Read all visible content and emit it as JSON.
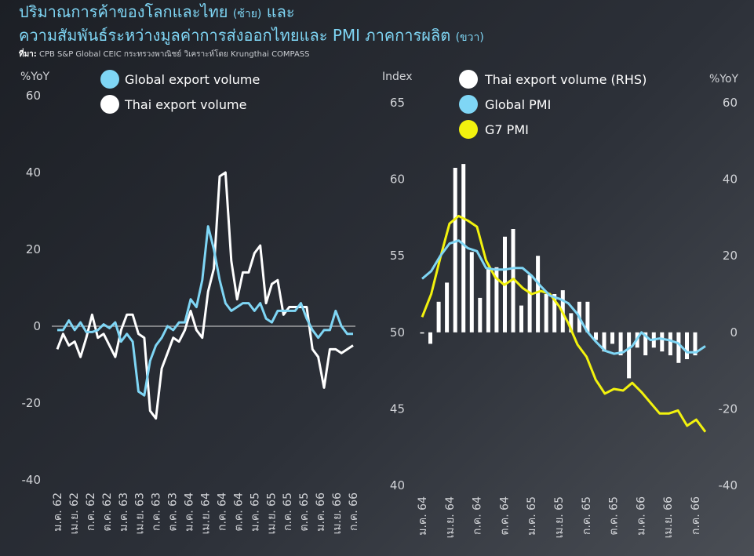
{
  "title": {
    "line1_main": "ปริมาณการค้าของโลกและไทย",
    "line1_paren": "(ซ้าย)",
    "line1_end": "และ",
    "line2_main": "ความสัมพันธ์ระหว่างมูลค่าการส่งออกไทยและ PMI ภาคการผลิต",
    "line2_paren": "(ขวา)"
  },
  "source": {
    "label": "ที่มา:",
    "text": "CPB S&P Global CEIC กระทรวงพาณิชย์ วิเคราะห์โดย Krungthai COMPASS"
  },
  "colors": {
    "global": "#7fd6f5",
    "thai": "#ffffff",
    "g7": "#f2f20e",
    "zero_line": "#d9d9d9"
  },
  "chart_data": [
    {
      "type": "line",
      "y_unit": "%YoY",
      "ylim": [
        -40,
        60
      ],
      "yticks": [
        60,
        40,
        20,
        0,
        -20,
        -40
      ],
      "grid": false,
      "legend": "top",
      "x_labels": [
        "ม.ค. 62",
        "เม.ย. 62",
        "ก.ค. 62",
        "ต.ค. 62",
        "ม.ค. 63",
        "เม.ย. 63",
        "ก.ค. 63",
        "ต.ค. 63",
        "ม.ค. 64",
        "เม.ย. 64",
        "ก.ค. 64",
        "ต.ค. 64",
        "ม.ค. 65",
        "เม.ย. 65",
        "ก.ค. 65",
        "ต.ค. 65",
        "ม.ค. 66",
        "เม.ย. 66",
        "ก.ค. 66"
      ],
      "series": [
        {
          "name": "Global export volume",
          "values": [
            -1,
            -1,
            1.5,
            -1,
            1,
            -1.5,
            -1.5,
            -1,
            0.5,
            -0.5,
            1,
            -4,
            -2,
            -4,
            -17,
            -18,
            -9,
            -5,
            -3,
            0,
            -1,
            1,
            1,
            7,
            5,
            12,
            26,
            20,
            12,
            6,
            4,
            5,
            6,
            6,
            4,
            6,
            2,
            1,
            4,
            4,
            4,
            4,
            6,
            2,
            -1,
            -3,
            -1,
            -1,
            4,
            0,
            -2,
            -2
          ]
        },
        {
          "name": "Thai export volume",
          "values": [
            -6,
            -2,
            -5,
            -4,
            -8,
            -3,
            3,
            -3,
            -2,
            -5,
            -8,
            -1,
            3,
            3,
            -2,
            -3,
            -22,
            -24,
            -11,
            -7,
            -3,
            -4,
            -1,
            4,
            -1,
            -3,
            9,
            15,
            39,
            40,
            17,
            7,
            14,
            14,
            19,
            21,
            6,
            11,
            12,
            3,
            5,
            5,
            5,
            5,
            -6,
            -8,
            -16,
            -6,
            -6,
            -7,
            -6,
            -5
          ]
        }
      ]
    },
    {
      "type": "line",
      "y_unit_left": "Index",
      "y_unit_right": "%YoY",
      "ylim_left": [
        40,
        65
      ],
      "ylim_right": [
        -40,
        60
      ],
      "yticks_left": [
        65,
        60,
        55,
        50,
        45,
        40
      ],
      "yticks_right": [
        60,
        40,
        20,
        0,
        -20,
        -40
      ],
      "grid": false,
      "legend": "top",
      "x_labels": [
        "ม.ค. 64",
        "เม.ย. 64",
        "ก.ค. 64",
        "ต.ค. 64",
        "ม.ค. 65",
        "เม.ย. 65",
        "ก.ค. 65",
        "ต.ค. 65",
        "ม.ค. 66",
        "เม.ย. 66",
        "ก.ค. 66"
      ],
      "series": [
        {
          "name": "Thai export volume (RHS)",
          "kind": "bar",
          "axis": "right",
          "values": [
            0,
            -3,
            8,
            13,
            43,
            44,
            21,
            9,
            17,
            17,
            25,
            27,
            7,
            15,
            20,
            10,
            10,
            11,
            5,
            8,
            8,
            -2,
            -5,
            -3,
            -6,
            -12,
            -4,
            -6,
            -4,
            -5,
            -6,
            -8,
            -7,
            -6
          ]
        },
        {
          "name": "Global PMI",
          "kind": "line",
          "axis": "left",
          "values": [
            53.5,
            54,
            55,
            55.8,
            56,
            55.5,
            55.3,
            54.2,
            54.1,
            54.1,
            54.2,
            54.2,
            53.7,
            53,
            52.4,
            52.2,
            51.9,
            51.2,
            50.1,
            49.4,
            48.8,
            48.6,
            48.7,
            49.1,
            50,
            49.5,
            49.6,
            49.5,
            49.3,
            48.7,
            48.7,
            49.1
          ]
        },
        {
          "name": "G7 PMI",
          "kind": "line",
          "axis": "left",
          "values": [
            51,
            52.5,
            54.9,
            57.1,
            57.6,
            57.3,
            56.9,
            54.7,
            53.6,
            53.1,
            53.5,
            52.9,
            52.5,
            52.7,
            52.5,
            51.7,
            50.6,
            49.2,
            48.4,
            46.9,
            46,
            46.3,
            46.2,
            46.7,
            46.1,
            45.4,
            44.7,
            44.7,
            44.9,
            43.9,
            44.3,
            43.5
          ]
        }
      ]
    }
  ]
}
